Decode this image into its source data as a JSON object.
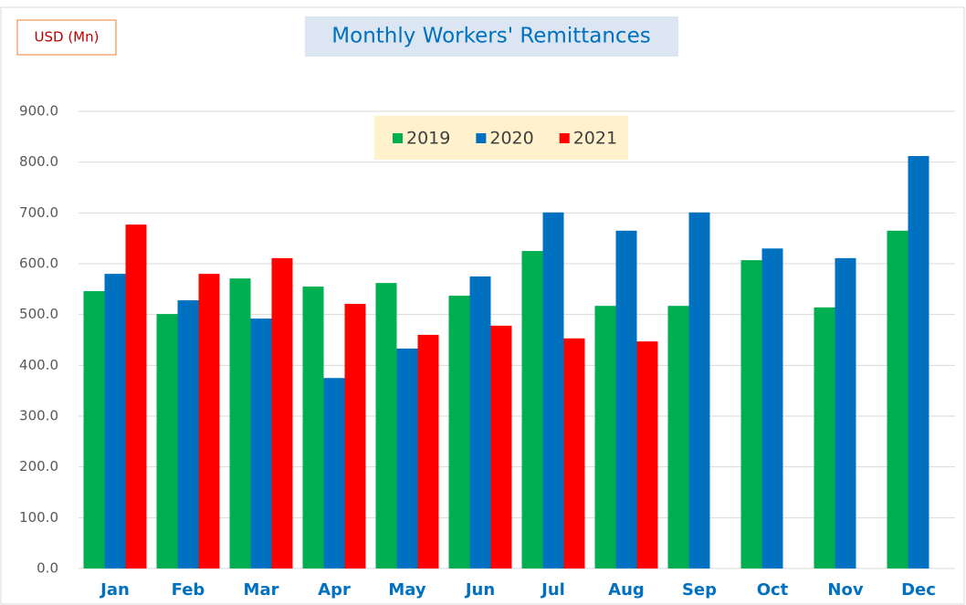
{
  "chart_data": {
    "type": "bar",
    "title": "Monthly Workers' Remittances",
    "unit_label": "USD (Mn)",
    "categories": [
      "Jan",
      "Feb",
      "Mar",
      "Apr",
      "May",
      "Jun",
      "Jul",
      "Aug",
      "Sep",
      "Oct",
      "Nov",
      "Dec"
    ],
    "series": [
      {
        "name": "2019",
        "color": "#00b050",
        "values": [
          546,
          501,
          571,
          555,
          562,
          537,
          625,
          517,
          517,
          607,
          514,
          665
        ]
      },
      {
        "name": "2020",
        "color": "#0070c0",
        "values": [
          580,
          528,
          492,
          375,
          433,
          575,
          701,
          665,
          701,
          630,
          611,
          812
        ]
      },
      {
        "name": "2021",
        "color": "#ff0000",
        "values": [
          677,
          580,
          611,
          521,
          460,
          478,
          453,
          447,
          null,
          null,
          null,
          null
        ]
      }
    ],
    "ylim": [
      0,
      900
    ],
    "yticks": [
      {
        "value": 0,
        "label": "0.0"
      },
      {
        "value": 100,
        "label": "100.0"
      },
      {
        "value": 200,
        "label": "200.0"
      },
      {
        "value": 300,
        "label": "300.0"
      },
      {
        "value": 400,
        "label": "400.0"
      },
      {
        "value": 500,
        "label": "500.0"
      },
      {
        "value": 600,
        "label": "600.0"
      },
      {
        "value": 700,
        "label": "700.0"
      },
      {
        "value": 800,
        "label": "800.0"
      },
      {
        "value": 900,
        "label": "900.0"
      }
    ],
    "grid": true,
    "legend": "top"
  }
}
